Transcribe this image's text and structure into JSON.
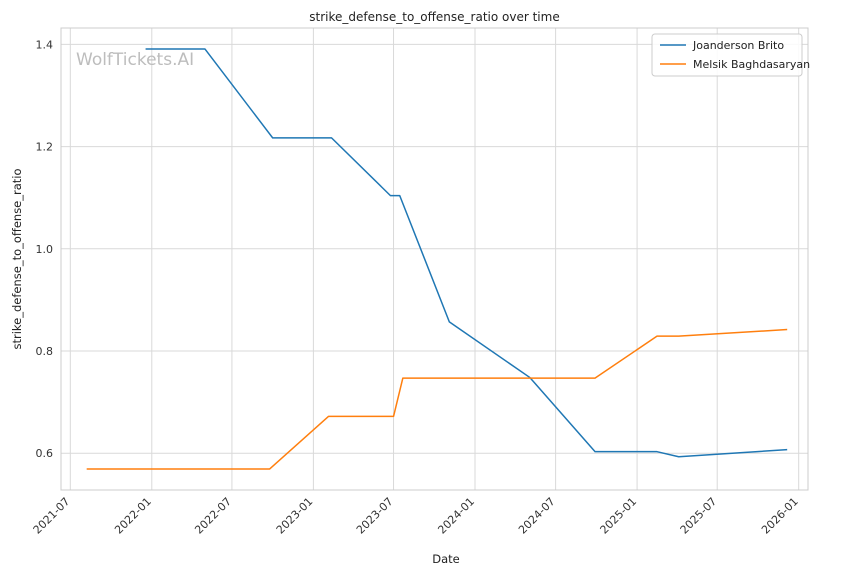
{
  "chart_data": {
    "type": "line",
    "title": "strike_defense_to_offense_ratio over time",
    "xlabel": "Date",
    "ylabel": "strike_defense_to_offense_ratio",
    "watermark": "WolfTickets.AI",
    "x_ticks": [
      "2021-07",
      "2022-01",
      "2022-07",
      "2023-01",
      "2023-07",
      "2024-01",
      "2024-07",
      "2025-01",
      "2025-07",
      "2026-01"
    ],
    "y_ticks": [
      0.6,
      0.8,
      1.0,
      1.2,
      1.4
    ],
    "y_tick_labels": [
      "0.6",
      "0.8",
      "1.0",
      "1.2",
      "1.4"
    ],
    "xlim": [
      "2021-06-10",
      "2026-01-22"
    ],
    "ylim": [
      0.528,
      1.432
    ],
    "grid": true,
    "legend_position": "top-right",
    "series": [
      {
        "name": "Joanderson Brito",
        "color": "#1f77b4",
        "points": [
          [
            "2021-12-18",
            1.391
          ],
          [
            "2022-05-01",
            1.391
          ],
          [
            "2022-10-01",
            1.217
          ],
          [
            "2023-02-11",
            1.217
          ],
          [
            "2023-06-24",
            1.104
          ],
          [
            "2023-07-15",
            1.104
          ],
          [
            "2023-11-04",
            0.857
          ],
          [
            "2024-05-04",
            0.748
          ],
          [
            "2024-09-28",
            0.603
          ],
          [
            "2025-02-15",
            0.603
          ],
          [
            "2025-04-05",
            0.593
          ],
          [
            "2025-12-06",
            0.607
          ]
        ]
      },
      {
        "name": "Melsik Baghdasaryan",
        "color": "#ff7f0e",
        "points": [
          [
            "2021-08-07",
            0.569
          ],
          [
            "2022-09-24",
            0.569
          ],
          [
            "2023-02-04",
            0.672
          ],
          [
            "2023-07-01",
            0.672
          ],
          [
            "2023-07-22",
            0.747
          ],
          [
            "2024-09-28",
            0.747
          ],
          [
            "2025-02-15",
            0.829
          ],
          [
            "2025-04-05",
            0.829
          ],
          [
            "2025-12-06",
            0.842
          ]
        ]
      }
    ]
  }
}
